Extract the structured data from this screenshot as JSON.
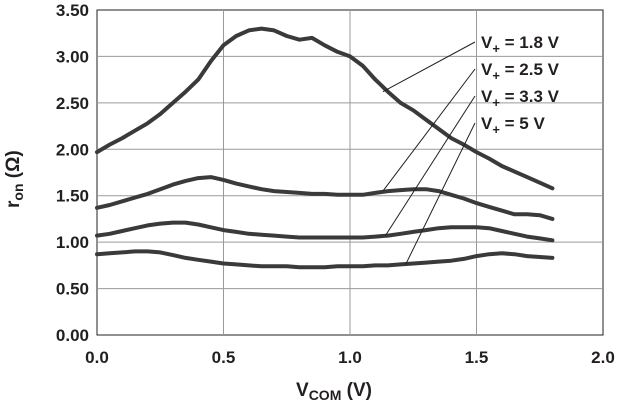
{
  "chart_data": {
    "type": "line",
    "title": "",
    "xlabel": {
      "main": "V",
      "sub": "COM",
      "unit": " (V)"
    },
    "ylabel": {
      "main": "r",
      "sub": "on",
      "unit": " (Ω)"
    },
    "xlim": [
      0,
      2
    ],
    "ylim": [
      0,
      3.5
    ],
    "xticks": [
      "0.0",
      "0.5",
      "1.0",
      "1.5",
      "2.0"
    ],
    "yticks": [
      "0.00",
      "0.50",
      "1.00",
      "1.50",
      "2.00",
      "2.50",
      "3.00",
      "3.50"
    ],
    "grid": true,
    "legend_position": "top-right",
    "series": [
      {
        "name": "V+ = 1.8 V",
        "label_main": "V",
        "label_sub": "+",
        "label_rest": " = 1.8 V",
        "x": [
          0,
          0.05,
          0.1,
          0.15,
          0.2,
          0.25,
          0.3,
          0.35,
          0.4,
          0.45,
          0.5,
          0.55,
          0.6,
          0.65,
          0.7,
          0.75,
          0.8,
          0.85,
          0.9,
          0.95,
          1.0,
          1.05,
          1.1,
          1.15,
          1.2,
          1.25,
          1.3,
          1.35,
          1.4,
          1.45,
          1.5,
          1.55,
          1.6,
          1.65,
          1.7,
          1.75,
          1.8
        ],
        "y": [
          1.97,
          2.05,
          2.12,
          2.2,
          2.28,
          2.38,
          2.5,
          2.62,
          2.75,
          2.95,
          3.12,
          3.22,
          3.28,
          3.3,
          3.28,
          3.22,
          3.18,
          3.2,
          3.12,
          3.05,
          3.0,
          2.9,
          2.75,
          2.62,
          2.5,
          2.42,
          2.32,
          2.22,
          2.12,
          2.05,
          1.97,
          1.9,
          1.82,
          1.76,
          1.7,
          1.64,
          1.58
        ]
      },
      {
        "name": "V+ = 2.5 V",
        "label_main": "V",
        "label_sub": "+",
        "label_rest": " = 2.5 V",
        "x": [
          0,
          0.05,
          0.1,
          0.15,
          0.2,
          0.25,
          0.3,
          0.35,
          0.4,
          0.45,
          0.5,
          0.55,
          0.6,
          0.65,
          0.7,
          0.75,
          0.8,
          0.85,
          0.9,
          0.95,
          1.0,
          1.05,
          1.1,
          1.15,
          1.2,
          1.25,
          1.3,
          1.35,
          1.4,
          1.45,
          1.5,
          1.55,
          1.6,
          1.65,
          1.7,
          1.75,
          1.8
        ],
        "y": [
          1.37,
          1.4,
          1.44,
          1.48,
          1.52,
          1.57,
          1.62,
          1.66,
          1.69,
          1.7,
          1.67,
          1.63,
          1.6,
          1.57,
          1.55,
          1.54,
          1.53,
          1.52,
          1.52,
          1.51,
          1.51,
          1.51,
          1.53,
          1.55,
          1.56,
          1.57,
          1.57,
          1.55,
          1.51,
          1.47,
          1.42,
          1.38,
          1.34,
          1.3,
          1.3,
          1.29,
          1.25
        ]
      },
      {
        "name": "V+ = 3.3 V",
        "label_main": "V",
        "label_sub": "+",
        "label_rest": " = 3.3 V",
        "x": [
          0,
          0.05,
          0.1,
          0.15,
          0.2,
          0.25,
          0.3,
          0.35,
          0.4,
          0.45,
          0.5,
          0.55,
          0.6,
          0.65,
          0.7,
          0.75,
          0.8,
          0.85,
          0.9,
          0.95,
          1.0,
          1.05,
          1.1,
          1.15,
          1.2,
          1.25,
          1.3,
          1.35,
          1.4,
          1.45,
          1.5,
          1.55,
          1.6,
          1.65,
          1.7,
          1.75,
          1.8
        ],
        "y": [
          1.07,
          1.09,
          1.12,
          1.15,
          1.18,
          1.2,
          1.21,
          1.21,
          1.19,
          1.16,
          1.13,
          1.11,
          1.09,
          1.08,
          1.07,
          1.06,
          1.05,
          1.05,
          1.05,
          1.05,
          1.05,
          1.05,
          1.06,
          1.07,
          1.09,
          1.11,
          1.13,
          1.15,
          1.16,
          1.16,
          1.16,
          1.15,
          1.12,
          1.09,
          1.06,
          1.04,
          1.02
        ]
      },
      {
        "name": "V+ = 5 V",
        "label_main": "V",
        "label_sub": "+",
        "label_rest": " = 5 V",
        "x": [
          0,
          0.05,
          0.1,
          0.15,
          0.2,
          0.25,
          0.3,
          0.35,
          0.4,
          0.45,
          0.5,
          0.55,
          0.6,
          0.65,
          0.7,
          0.75,
          0.8,
          0.85,
          0.9,
          0.95,
          1.0,
          1.05,
          1.1,
          1.15,
          1.2,
          1.25,
          1.3,
          1.35,
          1.4,
          1.45,
          1.5,
          1.55,
          1.6,
          1.65,
          1.7,
          1.75,
          1.8
        ],
        "y": [
          0.87,
          0.88,
          0.89,
          0.9,
          0.9,
          0.89,
          0.86,
          0.83,
          0.81,
          0.79,
          0.77,
          0.76,
          0.75,
          0.74,
          0.74,
          0.74,
          0.73,
          0.73,
          0.73,
          0.74,
          0.74,
          0.74,
          0.75,
          0.75,
          0.76,
          0.77,
          0.78,
          0.79,
          0.8,
          0.82,
          0.85,
          0.87,
          0.88,
          0.87,
          0.85,
          0.84,
          0.83
        ]
      }
    ]
  }
}
